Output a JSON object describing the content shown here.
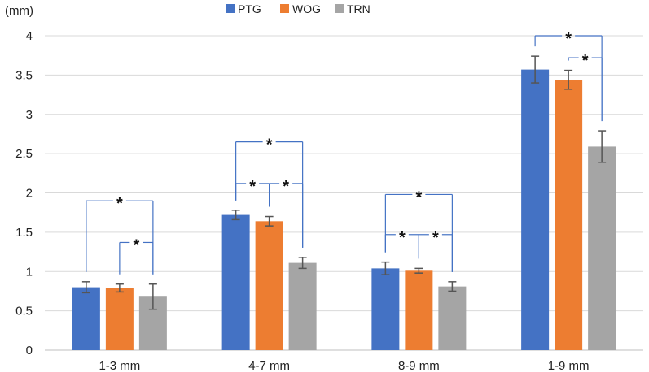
{
  "chart_data": {
    "type": "bar",
    "ylabel": "(mm)",
    "categories": [
      "1-3 mm",
      "4-7 mm",
      "8-9 mm",
      "1-9 mm"
    ],
    "ylim": [
      0,
      4
    ],
    "yticks": [
      "0",
      "0.5",
      "1",
      "1.5",
      "2",
      "2.5",
      "3",
      "3.5",
      "4"
    ],
    "grid": true,
    "legend_position": "top",
    "series": [
      {
        "name": "PTG",
        "color": "#4472C4",
        "values": [
          0.8,
          1.72,
          1.04,
          3.57
        ],
        "errors": [
          0.07,
          0.06,
          0.08,
          0.17
        ]
      },
      {
        "name": "WOG",
        "color": "#ED7D31",
        "values": [
          0.79,
          1.64,
          1.01,
          3.44
        ],
        "errors": [
          0.05,
          0.06,
          0.03,
          0.12
        ]
      },
      {
        "name": "TRN",
        "color": "#A5A5A5",
        "values": [
          0.68,
          1.11,
          0.81,
          2.59
        ],
        "errors": [
          0.16,
          0.07,
          0.06,
          0.2
        ]
      }
    ],
    "annotations": [
      {
        "category": 0,
        "from": 0,
        "to": 2,
        "level": 1.9,
        "label": "*"
      },
      {
        "category": 0,
        "from": 1,
        "to": 2,
        "level": 1.37,
        "label": "*"
      },
      {
        "category": 1,
        "from": 0,
        "to": 2,
        "level": 2.65,
        "label": "*"
      },
      {
        "category": 1,
        "from": 0,
        "to": 1,
        "level": 2.12,
        "label": "*"
      },
      {
        "category": 1,
        "from": 1,
        "to": 2,
        "level": 2.12,
        "label": "*"
      },
      {
        "category": 2,
        "from": 0,
        "to": 2,
        "level": 1.98,
        "label": "*"
      },
      {
        "category": 2,
        "from": 0,
        "to": 1,
        "level": 1.47,
        "label": "*"
      },
      {
        "category": 2,
        "from": 1,
        "to": 2,
        "level": 1.47,
        "label": "*"
      },
      {
        "category": 3,
        "from": 0,
        "to": 2,
        "level": 4.0,
        "label": "*"
      },
      {
        "category": 3,
        "from": 1,
        "to": 2,
        "level": 3.72,
        "label": "*"
      }
    ]
  }
}
